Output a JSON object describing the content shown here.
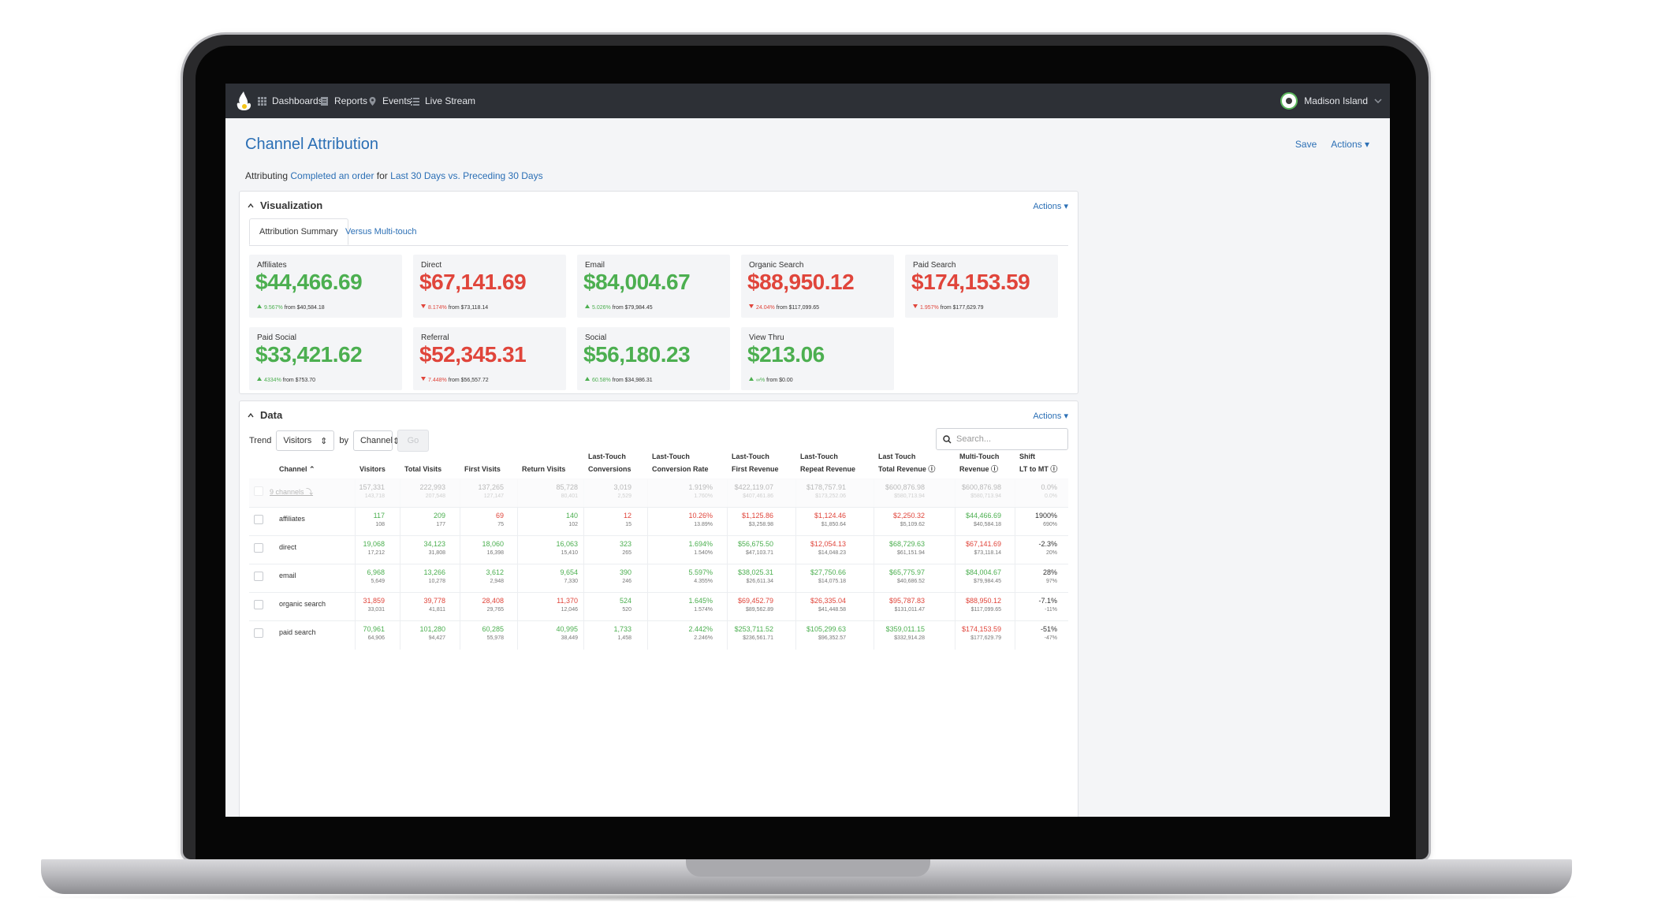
{
  "nav": {
    "items": [
      "Dashboards",
      "Reports",
      "Events",
      "Live Stream"
    ],
    "user": "Madison Island"
  },
  "page": {
    "title": "Channel Attribution",
    "save": "Save",
    "actions": "Actions",
    "subtitle": {
      "prefix": "Attributing",
      "event": "Completed an order",
      "for": "for",
      "range": "Last 30 Days vs. Preceding 30 Days"
    }
  },
  "visualization": {
    "title": "Visualization",
    "actions": "Actions",
    "tabs": [
      "Attribution Summary",
      "Versus Multi-touch"
    ],
    "cards": [
      {
        "label": "Affiliates",
        "value": "$44,466.69",
        "trend": "up",
        "change": "9.567%",
        "from": "from $40,584.18"
      },
      {
        "label": "Direct",
        "value": "$67,141.69",
        "trend": "down",
        "change": "8.174%",
        "from": "from $73,118.14"
      },
      {
        "label": "Email",
        "value": "$84,004.67",
        "trend": "up",
        "change": "5.026%",
        "from": "from $79,984.45"
      },
      {
        "label": "Organic Search",
        "value": "$88,950.12",
        "trend": "down",
        "change": "24.04%",
        "from": "from $117,099.65"
      },
      {
        "label": "Paid Search",
        "value": "$174,153.59",
        "trend": "down",
        "change": "1.957%",
        "from": "from $177,629.79"
      },
      {
        "label": "Paid Social",
        "value": "$33,421.62",
        "trend": "up",
        "change": "4334%",
        "from": "from $753.70"
      },
      {
        "label": "Referral",
        "value": "$52,345.31",
        "trend": "down",
        "change": "7.448%",
        "from": "from $56,557.72"
      },
      {
        "label": "Social",
        "value": "$56,180.23",
        "trend": "up",
        "change": "60.58%",
        "from": "from $34,986.31"
      },
      {
        "label": "View Thru",
        "value": "$213.06",
        "trend": "up",
        "change": "∞%",
        "from": "from $0.00"
      }
    ]
  },
  "data": {
    "title": "Data",
    "actions": "Actions",
    "trend_label": "Trend",
    "trend_value": "Visitors",
    "by_label": "by",
    "by_value": "Channel",
    "go": "Go",
    "search_placeholder": "Search...",
    "headers": [
      [
        "Channel ⌃"
      ],
      [
        "Visitors"
      ],
      [
        "Total Visits"
      ],
      [
        "First Visits"
      ],
      [
        "Return Visits"
      ],
      [
        "Last-Touch",
        "Conversions"
      ],
      [
        "Last-Touch",
        "Conversion Rate"
      ],
      [
        "Last-Touch",
        "First Revenue"
      ],
      [
        "Last-Touch",
        "Repeat Revenue"
      ],
      [
        "Last Touch",
        "Total Revenue ⓘ"
      ],
      [
        "Multi-Touch",
        "Revenue ⓘ"
      ],
      [
        "Shift",
        "LT to MT ⓘ"
      ]
    ],
    "rows": [
      {
        "name": "9 channels ⤵",
        "agg": true,
        "cells": [
          [
            "157,331",
            "143,718",
            "n"
          ],
          [
            "222,993",
            "207,548",
            "n"
          ],
          [
            "137,265",
            "127,147",
            "n"
          ],
          [
            "85,728",
            "80,401",
            "n"
          ],
          [
            "3,019",
            "2,529",
            "n"
          ],
          [
            "1.919%",
            "1.760%",
            "n"
          ],
          [
            "$422,119.07",
            "$407,461.86",
            "n"
          ],
          [
            "$178,757.91",
            "$173,252.06",
            "n"
          ],
          [
            "$600,876.98",
            "$580,713.94",
            "n"
          ],
          [
            "$600,876.98",
            "$580,713.94",
            "n"
          ],
          [
            "0.0%",
            "0.0%",
            "n"
          ]
        ]
      },
      {
        "name": "affiliates",
        "cells": [
          [
            "117",
            "108",
            "g"
          ],
          [
            "209",
            "177",
            "g"
          ],
          [
            "69",
            "75",
            "r"
          ],
          [
            "140",
            "102",
            "g"
          ],
          [
            "12",
            "15",
            "r"
          ],
          [
            "10.26%",
            "13.89%",
            "r"
          ],
          [
            "$1,125.86",
            "$3,258.98",
            "r"
          ],
          [
            "$1,124.46",
            "$1,850.64",
            "r"
          ],
          [
            "$2,250.32",
            "$5,109.62",
            "r"
          ],
          [
            "$44,466.69",
            "$40,584.18",
            "g"
          ],
          [
            "1900%",
            "690%",
            "n"
          ]
        ]
      },
      {
        "name": "direct",
        "cells": [
          [
            "19,068",
            "17,212",
            "g"
          ],
          [
            "34,123",
            "31,808",
            "g"
          ],
          [
            "18,060",
            "16,398",
            "g"
          ],
          [
            "16,063",
            "15,410",
            "g"
          ],
          [
            "323",
            "265",
            "g"
          ],
          [
            "1.694%",
            "1.540%",
            "g"
          ],
          [
            "$56,675.50",
            "$47,103.71",
            "g"
          ],
          [
            "$12,054.13",
            "$14,048.23",
            "r"
          ],
          [
            "$68,729.63",
            "$61,151.94",
            "g"
          ],
          [
            "$67,141.69",
            "$73,118.14",
            "r"
          ],
          [
            "-2.3%",
            "20%",
            "n"
          ]
        ]
      },
      {
        "name": "email",
        "cells": [
          [
            "6,968",
            "5,649",
            "g"
          ],
          [
            "13,266",
            "10,278",
            "g"
          ],
          [
            "3,612",
            "2,948",
            "g"
          ],
          [
            "9,654",
            "7,330",
            "g"
          ],
          [
            "390",
            "246",
            "g"
          ],
          [
            "5.597%",
            "4.355%",
            "g"
          ],
          [
            "$38,025.31",
            "$26,611.34",
            "g"
          ],
          [
            "$27,750.66",
            "$14,075.18",
            "g"
          ],
          [
            "$65,775.97",
            "$40,686.52",
            "g"
          ],
          [
            "$84,004.67",
            "$79,984.45",
            "g"
          ],
          [
            "28%",
            "97%",
            "n"
          ]
        ]
      },
      {
        "name": "organic search",
        "cells": [
          [
            "31,859",
            "33,031",
            "r"
          ],
          [
            "39,778",
            "41,811",
            "r"
          ],
          [
            "28,408",
            "29,765",
            "r"
          ],
          [
            "11,370",
            "12,046",
            "r"
          ],
          [
            "524",
            "520",
            "g"
          ],
          [
            "1.645%",
            "1.574%",
            "g"
          ],
          [
            "$69,452.79",
            "$89,562.89",
            "r"
          ],
          [
            "$26,335.04",
            "$41,448.58",
            "r"
          ],
          [
            "$95,787.83",
            "$131,011.47",
            "r"
          ],
          [
            "$88,950.12",
            "$117,099.65",
            "r"
          ],
          [
            "-7.1%",
            "-11%",
            "n"
          ]
        ]
      },
      {
        "name": "paid search",
        "cells": [
          [
            "70,961",
            "64,906",
            "g"
          ],
          [
            "101,280",
            "94,427",
            "g"
          ],
          [
            "60,285",
            "55,978",
            "g"
          ],
          [
            "40,995",
            "38,449",
            "g"
          ],
          [
            "1,733",
            "1,458",
            "g"
          ],
          [
            "2.442%",
            "2.246%",
            "g"
          ],
          [
            "$253,711.52",
            "$236,561.71",
            "g"
          ],
          [
            "$105,299.63",
            "$96,352.57",
            "g"
          ],
          [
            "$359,011.15",
            "$332,914.28",
            "g"
          ],
          [
            "$174,153.59",
            "$177,629.79",
            "r"
          ],
          [
            "-51%",
            "-47%",
            "n"
          ]
        ]
      }
    ]
  },
  "colors": {
    "accent": "#2b6fb5",
    "positive": "#4caf50",
    "negative": "#e0453b",
    "nav": "#2d3036"
  },
  "icons": [
    "grid-icon",
    "report-icon",
    "pin-icon",
    "list-icon",
    "search-icon",
    "chevron-down-icon",
    "caret-up-icon"
  ]
}
